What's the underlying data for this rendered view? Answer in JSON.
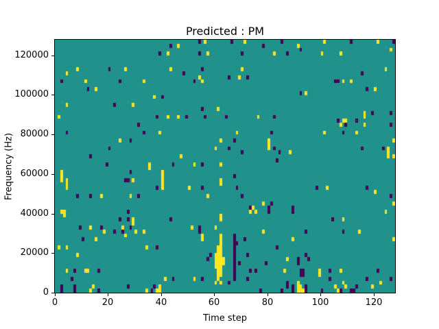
{
  "chart": {
    "title": "Predicted : PM",
    "x_axis": {
      "label": "Time step",
      "tick_labels": [
        "0",
        "20",
        "40",
        "60",
        "80",
        "100",
        "120"
      ]
    },
    "y_axis": {
      "label": "Frequency (Hz)",
      "tick_labels": [
        "0",
        "20000",
        "40000",
        "60000",
        "80000",
        "100000",
        "120000"
      ]
    }
  },
  "chart_data": {
    "type": "heatmap",
    "title": "Predicted : PM",
    "xlabel": "Time step",
    "ylabel": "Frequency (Hz)",
    "x_range": [
      0,
      128
    ],
    "y_range": [
      0,
      128000
    ],
    "n_cols": 128,
    "n_rows": 64,
    "freq_bin_hz": 2000,
    "x_ticks": [
      0,
      20,
      40,
      60,
      80,
      100,
      120
    ],
    "y_ticks": [
      0,
      20000,
      40000,
      60000,
      80000,
      100000,
      120000
    ],
    "grid": false,
    "legend_position": "none",
    "colormap": "viridis",
    "colors": {
      "low": "#440154",
      "mid": "#21918c",
      "high": "#fde725"
    },
    "background_value": "mid",
    "points_format": [
      "time_step",
      "freq_bin",
      "value (1=high/yellow, 0=low/dark)"
    ],
    "points": [
      [
        54,
        63,
        0
      ],
      [
        56,
        63,
        1
      ],
      [
        66,
        63,
        0
      ],
      [
        71,
        63,
        1
      ],
      [
        85,
        63,
        0
      ],
      [
        101,
        63,
        1
      ],
      [
        111,
        63,
        0
      ],
      [
        121,
        63,
        1
      ],
      [
        127,
        63,
        0
      ],
      [
        43,
        62,
        0
      ],
      [
        46,
        62,
        1
      ],
      [
        78,
        62,
        0
      ],
      [
        91,
        62,
        1
      ],
      [
        92,
        61,
        0
      ],
      [
        126,
        61,
        1
      ],
      [
        39,
        60,
        0
      ],
      [
        42,
        60,
        1
      ],
      [
        54,
        60,
        0
      ],
      [
        57,
        60,
        1
      ],
      [
        70,
        60,
        0
      ],
      [
        82,
        60,
        1
      ],
      [
        87,
        60,
        0
      ],
      [
        100,
        60,
        1
      ],
      [
        107,
        60,
        1
      ],
      [
        8,
        56,
        1
      ],
      [
        20,
        56,
        0
      ],
      [
        26,
        56,
        1
      ],
      [
        43,
        56,
        1
      ],
      [
        55,
        56,
        0
      ],
      [
        70,
        56,
        1
      ],
      [
        124,
        56,
        1
      ],
      [
        4,
        55,
        1
      ],
      [
        48,
        55,
        0
      ],
      [
        115,
        55,
        0
      ],
      [
        54,
        54,
        1
      ],
      [
        65,
        54,
        0
      ],
      [
        69,
        54,
        1
      ],
      [
        72,
        54,
        0
      ],
      [
        2,
        53,
        0
      ],
      [
        11,
        53,
        1
      ],
      [
        24,
        53,
        0
      ],
      [
        33,
        53,
        1
      ],
      [
        52,
        53,
        0
      ],
      [
        55,
        53,
        1
      ],
      [
        105,
        53,
        0
      ],
      [
        106,
        53,
        0
      ],
      [
        108,
        53,
        1
      ],
      [
        111,
        53,
        1
      ],
      [
        12,
        51,
        0
      ],
      [
        15,
        51,
        1
      ],
      [
        117,
        51,
        0
      ],
      [
        120,
        51,
        1
      ],
      [
        92,
        50,
        0
      ],
      [
        94,
        50,
        1
      ],
      [
        37,
        49,
        1
      ],
      [
        40,
        49,
        0
      ],
      [
        4,
        47,
        1
      ],
      [
        22,
        47,
        0
      ],
      [
        29,
        47,
        1
      ],
      [
        55,
        46,
        0
      ],
      [
        61,
        46,
        1
      ],
      [
        116,
        45,
        1
      ],
      [
        119,
        45,
        0
      ],
      [
        126,
        45,
        0
      ],
      [
        1,
        44,
        1
      ],
      [
        38,
        44,
        0
      ],
      [
        42,
        44,
        1
      ],
      [
        46,
        44,
        1
      ],
      [
        49,
        44,
        0
      ],
      [
        56,
        44,
        0
      ],
      [
        64,
        44,
        0
      ],
      [
        76,
        44,
        1
      ],
      [
        82,
        44,
        0
      ],
      [
        116,
        44,
        1
      ],
      [
        106,
        43,
        0
      ],
      [
        108,
        43,
        1
      ],
      [
        109,
        43,
        1
      ],
      [
        113,
        43,
        0
      ],
      [
        31,
        42,
        0
      ],
      [
        107,
        42,
        1
      ],
      [
        109,
        42,
        0
      ],
      [
        116,
        42,
        1
      ],
      [
        126,
        42,
        0
      ],
      [
        4,
        40,
        0
      ],
      [
        33,
        40,
        0
      ],
      [
        39,
        40,
        1
      ],
      [
        68,
        40,
        1
      ],
      [
        81,
        40,
        0
      ],
      [
        101,
        40,
        1
      ],
      [
        108,
        40,
        0
      ],
      [
        113,
        40,
        1
      ],
      [
        24,
        38,
        1
      ],
      [
        28,
        38,
        0
      ],
      [
        62,
        38,
        1
      ],
      [
        67,
        38,
        0
      ],
      [
        80,
        38,
        1
      ],
      [
        127,
        38,
        1
      ],
      [
        80,
        37,
        1
      ],
      [
        20,
        36,
        0
      ],
      [
        60,
        36,
        1
      ],
      [
        65,
        36,
        0
      ],
      [
        80,
        36,
        1
      ],
      [
        82,
        36,
        0
      ],
      [
        115,
        36,
        0
      ],
      [
        123,
        36,
        0
      ],
      [
        125,
        36,
        1
      ],
      [
        70,
        35,
        0
      ],
      [
        84,
        35,
        0
      ],
      [
        88,
        35,
        1
      ],
      [
        125,
        35,
        1
      ],
      [
        13,
        34,
        0
      ],
      [
        47,
        34,
        1
      ],
      [
        125,
        34,
        1
      ],
      [
        127,
        34,
        1
      ],
      [
        83,
        33,
        0
      ],
      [
        19,
        32,
        0
      ],
      [
        35,
        32,
        1
      ],
      [
        44,
        32,
        0
      ],
      [
        52,
        32,
        1
      ],
      [
        55,
        32,
        0
      ],
      [
        62,
        32,
        1
      ],
      [
        35,
        31,
        1
      ],
      [
        2,
        30,
        1
      ],
      [
        28,
        30,
        0
      ],
      [
        40,
        30,
        1
      ],
      [
        2,
        29,
        1
      ],
      [
        40,
        29,
        1
      ],
      [
        67,
        29,
        0
      ],
      [
        2,
        28,
        1
      ],
      [
        4,
        28,
        1
      ],
      [
        26,
        28,
        0
      ],
      [
        27,
        28,
        0
      ],
      [
        29,
        28,
        1
      ],
      [
        40,
        28,
        1
      ],
      [
        62,
        28,
        1
      ],
      [
        4,
        27,
        1
      ],
      [
        40,
        27,
        1
      ],
      [
        62,
        27,
        1
      ],
      [
        4,
        26,
        1
      ],
      [
        38,
        26,
        0
      ],
      [
        40,
        26,
        1
      ],
      [
        50,
        26,
        1
      ],
      [
        55,
        26,
        0
      ],
      [
        68,
        26,
        0
      ],
      [
        98,
        26,
        0
      ],
      [
        102,
        26,
        1
      ],
      [
        117,
        26,
        0
      ],
      [
        120,
        25,
        1
      ],
      [
        8,
        24,
        0
      ],
      [
        13,
        24,
        0
      ],
      [
        17,
        24,
        1
      ],
      [
        28,
        24,
        1
      ],
      [
        31,
        24,
        0
      ],
      [
        57,
        24,
        1
      ],
      [
        70,
        24,
        0
      ],
      [
        126,
        24,
        0
      ],
      [
        78,
        22,
        1
      ],
      [
        81,
        22,
        0
      ],
      [
        127,
        22,
        1
      ],
      [
        73,
        21,
        0
      ],
      [
        74,
        21,
        1
      ],
      [
        80,
        21,
        0
      ],
      [
        89,
        21,
        0
      ],
      [
        2,
        20,
        1
      ],
      [
        3,
        20,
        1
      ],
      [
        27,
        20,
        0
      ],
      [
        73,
        20,
        1
      ],
      [
        75,
        20,
        1
      ],
      [
        80,
        20,
        0
      ],
      [
        89,
        20,
        0
      ],
      [
        124,
        20,
        1
      ],
      [
        3,
        19,
        1
      ],
      [
        62,
        19,
        1
      ],
      [
        24,
        18,
        0
      ],
      [
        27,
        18,
        0
      ],
      [
        29,
        18,
        1
      ],
      [
        43,
        18,
        0
      ],
      [
        62,
        18,
        1
      ],
      [
        104,
        18,
        0
      ],
      [
        108,
        18,
        1
      ],
      [
        29,
        17,
        1
      ],
      [
        9,
        16,
        0
      ],
      [
        13,
        16,
        1
      ],
      [
        17,
        16,
        0
      ],
      [
        25,
        16,
        1
      ],
      [
        28,
        16,
        0
      ],
      [
        51,
        16,
        1
      ],
      [
        54,
        16,
        0
      ],
      [
        60,
        16,
        1
      ],
      [
        18,
        15,
        1
      ],
      [
        22,
        15,
        0
      ],
      [
        25,
        15,
        0
      ],
      [
        30,
        15,
        1
      ],
      [
        33,
        15,
        1
      ],
      [
        54,
        15,
        0
      ],
      [
        78,
        15,
        1
      ],
      [
        94,
        15,
        0
      ],
      [
        108,
        15,
        0
      ],
      [
        114,
        15,
        1
      ],
      [
        26,
        14,
        1
      ],
      [
        55,
        14,
        1
      ],
      [
        62,
        14,
        1
      ],
      [
        67,
        14,
        0
      ],
      [
        10,
        13,
        0
      ],
      [
        15,
        13,
        1
      ],
      [
        55,
        13,
        1
      ],
      [
        62,
        13,
        1
      ],
      [
        67,
        13,
        0
      ],
      [
        71,
        13,
        0
      ],
      [
        89,
        13,
        1
      ],
      [
        127,
        13,
        1
      ],
      [
        62,
        12,
        1
      ],
      [
        67,
        12,
        0
      ],
      [
        68,
        12,
        0
      ],
      [
        1,
        11,
        1
      ],
      [
        4,
        11,
        1
      ],
      [
        34,
        11,
        1
      ],
      [
        38,
        11,
        0
      ],
      [
        61,
        11,
        1
      ],
      [
        62,
        11,
        1
      ],
      [
        67,
        11,
        0
      ],
      [
        83,
        11,
        0
      ],
      [
        61,
        10,
        1
      ],
      [
        62,
        10,
        1
      ],
      [
        67,
        10,
        0
      ],
      [
        8,
        9,
        1
      ],
      [
        58,
        9,
        0
      ],
      [
        60,
        9,
        1
      ],
      [
        61,
        9,
        1
      ],
      [
        62,
        9,
        1
      ],
      [
        67,
        9,
        0
      ],
      [
        72,
        9,
        0
      ],
      [
        94,
        9,
        0
      ],
      [
        57,
        8,
        0
      ],
      [
        60,
        8,
        1
      ],
      [
        61,
        8,
        1
      ],
      [
        62,
        8,
        1
      ],
      [
        63,
        8,
        1
      ],
      [
        67,
        8,
        0
      ],
      [
        87,
        8,
        1
      ],
      [
        91,
        8,
        0
      ],
      [
        95,
        8,
        0
      ],
      [
        60,
        7,
        1
      ],
      [
        61,
        7,
        1
      ],
      [
        62,
        7,
        1
      ],
      [
        63,
        7,
        1
      ],
      [
        67,
        7,
        0
      ],
      [
        69,
        7,
        0
      ],
      [
        79,
        7,
        0
      ],
      [
        91,
        7,
        0
      ],
      [
        60,
        6,
        1
      ],
      [
        61,
        6,
        1
      ],
      [
        62,
        6,
        1
      ],
      [
        67,
        6,
        0
      ],
      [
        4,
        5,
        1
      ],
      [
        7,
        5,
        0
      ],
      [
        11,
        5,
        1
      ],
      [
        12,
        5,
        1
      ],
      [
        16,
        5,
        0
      ],
      [
        61,
        5,
        1
      ],
      [
        62,
        5,
        1
      ],
      [
        67,
        5,
        0
      ],
      [
        73,
        5,
        0
      ],
      [
        75,
        5,
        0
      ],
      [
        86,
        5,
        1
      ],
      [
        92,
        5,
        0
      ],
      [
        93,
        5,
        0
      ],
      [
        99,
        5,
        1
      ],
      [
        103,
        5,
        0
      ],
      [
        107,
        5,
        1
      ],
      [
        121,
        5,
        0
      ],
      [
        61,
        4,
        1
      ],
      [
        62,
        4,
        1
      ],
      [
        67,
        4,
        0
      ],
      [
        92,
        4,
        0
      ],
      [
        93,
        4,
        0
      ],
      [
        99,
        4,
        1
      ],
      [
        6,
        3,
        0
      ],
      [
        41,
        3,
        1
      ],
      [
        44,
        3,
        0
      ],
      [
        52,
        3,
        1
      ],
      [
        55,
        3,
        0
      ],
      [
        61,
        3,
        1
      ],
      [
        67,
        3,
        0
      ],
      [
        72,
        3,
        0
      ],
      [
        103,
        3,
        0
      ],
      [
        117,
        3,
        0
      ],
      [
        126,
        3,
        0
      ],
      [
        60,
        2,
        1
      ],
      [
        62,
        2,
        1
      ],
      [
        65,
        2,
        0
      ],
      [
        87,
        2,
        0
      ],
      [
        91,
        2,
        1
      ],
      [
        108,
        2,
        1
      ],
      [
        122,
        2,
        1
      ],
      [
        2,
        1,
        0
      ],
      [
        7,
        1,
        0
      ],
      [
        14,
        1,
        1
      ],
      [
        27,
        1,
        0
      ],
      [
        37,
        1,
        0
      ],
      [
        39,
        1,
        1
      ],
      [
        87,
        1,
        0
      ],
      [
        89,
        1,
        0
      ],
      [
        91,
        1,
        1
      ],
      [
        92,
        1,
        1
      ],
      [
        94,
        1,
        0
      ],
      [
        105,
        1,
        1
      ],
      [
        109,
        1,
        1
      ],
      [
        113,
        1,
        0
      ],
      [
        119,
        1,
        1
      ],
      [
        2,
        0,
        0
      ],
      [
        7,
        0,
        0
      ],
      [
        13,
        0,
        1
      ],
      [
        16,
        0,
        0
      ],
      [
        34,
        0,
        1
      ],
      [
        36,
        0,
        0
      ],
      [
        38,
        0,
        1
      ],
      [
        39,
        0,
        1
      ],
      [
        77,
        0,
        0
      ],
      [
        85,
        0,
        0
      ],
      [
        89,
        0,
        0
      ],
      [
        91,
        0,
        1
      ],
      [
        92,
        0,
        1
      ],
      [
        93,
        0,
        1
      ],
      [
        94,
        0,
        0
      ],
      [
        100,
        0,
        0
      ],
      [
        106,
        0,
        1
      ],
      [
        107,
        0,
        0
      ],
      [
        111,
        0,
        0
      ],
      [
        112,
        0,
        0
      ]
    ]
  }
}
